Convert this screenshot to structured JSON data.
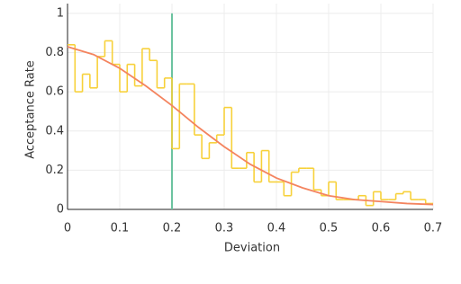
{
  "chart_data": {
    "type": "line",
    "x_label": "Deviation",
    "y_label": "Acceptance Rate",
    "xlim": [
      0,
      0.7
    ],
    "ylim": [
      0,
      1.05
    ],
    "xticks": [
      0,
      0.1,
      0.2,
      0.3,
      0.4,
      0.5,
      0.6,
      0.7
    ],
    "yticks": [
      0,
      0.2,
      0.4,
      0.6,
      0.8,
      1
    ],
    "grid": true,
    "series": [
      {
        "color": "#f7d13a",
        "step": true,
        "bins": [
          0,
          0.0143,
          0.0286,
          0.0429,
          0.0571,
          0.0714,
          0.0857,
          0.1,
          0.1143,
          0.1286,
          0.1429,
          0.1571,
          0.1714,
          0.1857,
          0.2,
          0.2143,
          0.2286,
          0.2429,
          0.2571,
          0.2714,
          0.2857,
          0.3,
          0.3143,
          0.3286,
          0.3429,
          0.3571,
          0.3714,
          0.3857,
          0.4,
          0.4143,
          0.4286,
          0.4429,
          0.4571,
          0.4714,
          0.4857,
          0.5,
          0.5143,
          0.5286,
          0.5429,
          0.5571,
          0.5714,
          0.5857,
          0.6,
          0.6143,
          0.6286,
          0.6429,
          0.6571,
          0.6714,
          0.6857,
          0.7
        ],
        "values": [
          0.84,
          0.6,
          0.69,
          0.62,
          0.78,
          0.86,
          0.74,
          0.6,
          0.74,
          0.63,
          0.82,
          0.76,
          0.62,
          0.67,
          0.31,
          0.64,
          0.64,
          0.38,
          0.26,
          0.34,
          0.38,
          0.52,
          0.21,
          0.21,
          0.29,
          0.14,
          0.3,
          0.14,
          0.14,
          0.07,
          0.19,
          0.21,
          0.21,
          0.1,
          0.07,
          0.14,
          0.05,
          0.05,
          0.05,
          0.07,
          0.02,
          0.09,
          0.05,
          0.05,
          0.08,
          0.09,
          0.05,
          0.05,
          0.03
        ]
      },
      {
        "color": "#f4845f",
        "x": [
          0,
          0.05,
          0.1,
          0.15,
          0.2,
          0.25,
          0.3,
          0.35,
          0.4,
          0.45,
          0.5,
          0.55,
          0.6,
          0.65,
          0.7
        ],
        "values": [
          0.83,
          0.79,
          0.72,
          0.63,
          0.53,
          0.42,
          0.32,
          0.23,
          0.16,
          0.11,
          0.07,
          0.05,
          0.04,
          0.03,
          0.025
        ]
      }
    ],
    "vline": {
      "x": 0.2,
      "color": "#6cc3a0"
    }
  }
}
